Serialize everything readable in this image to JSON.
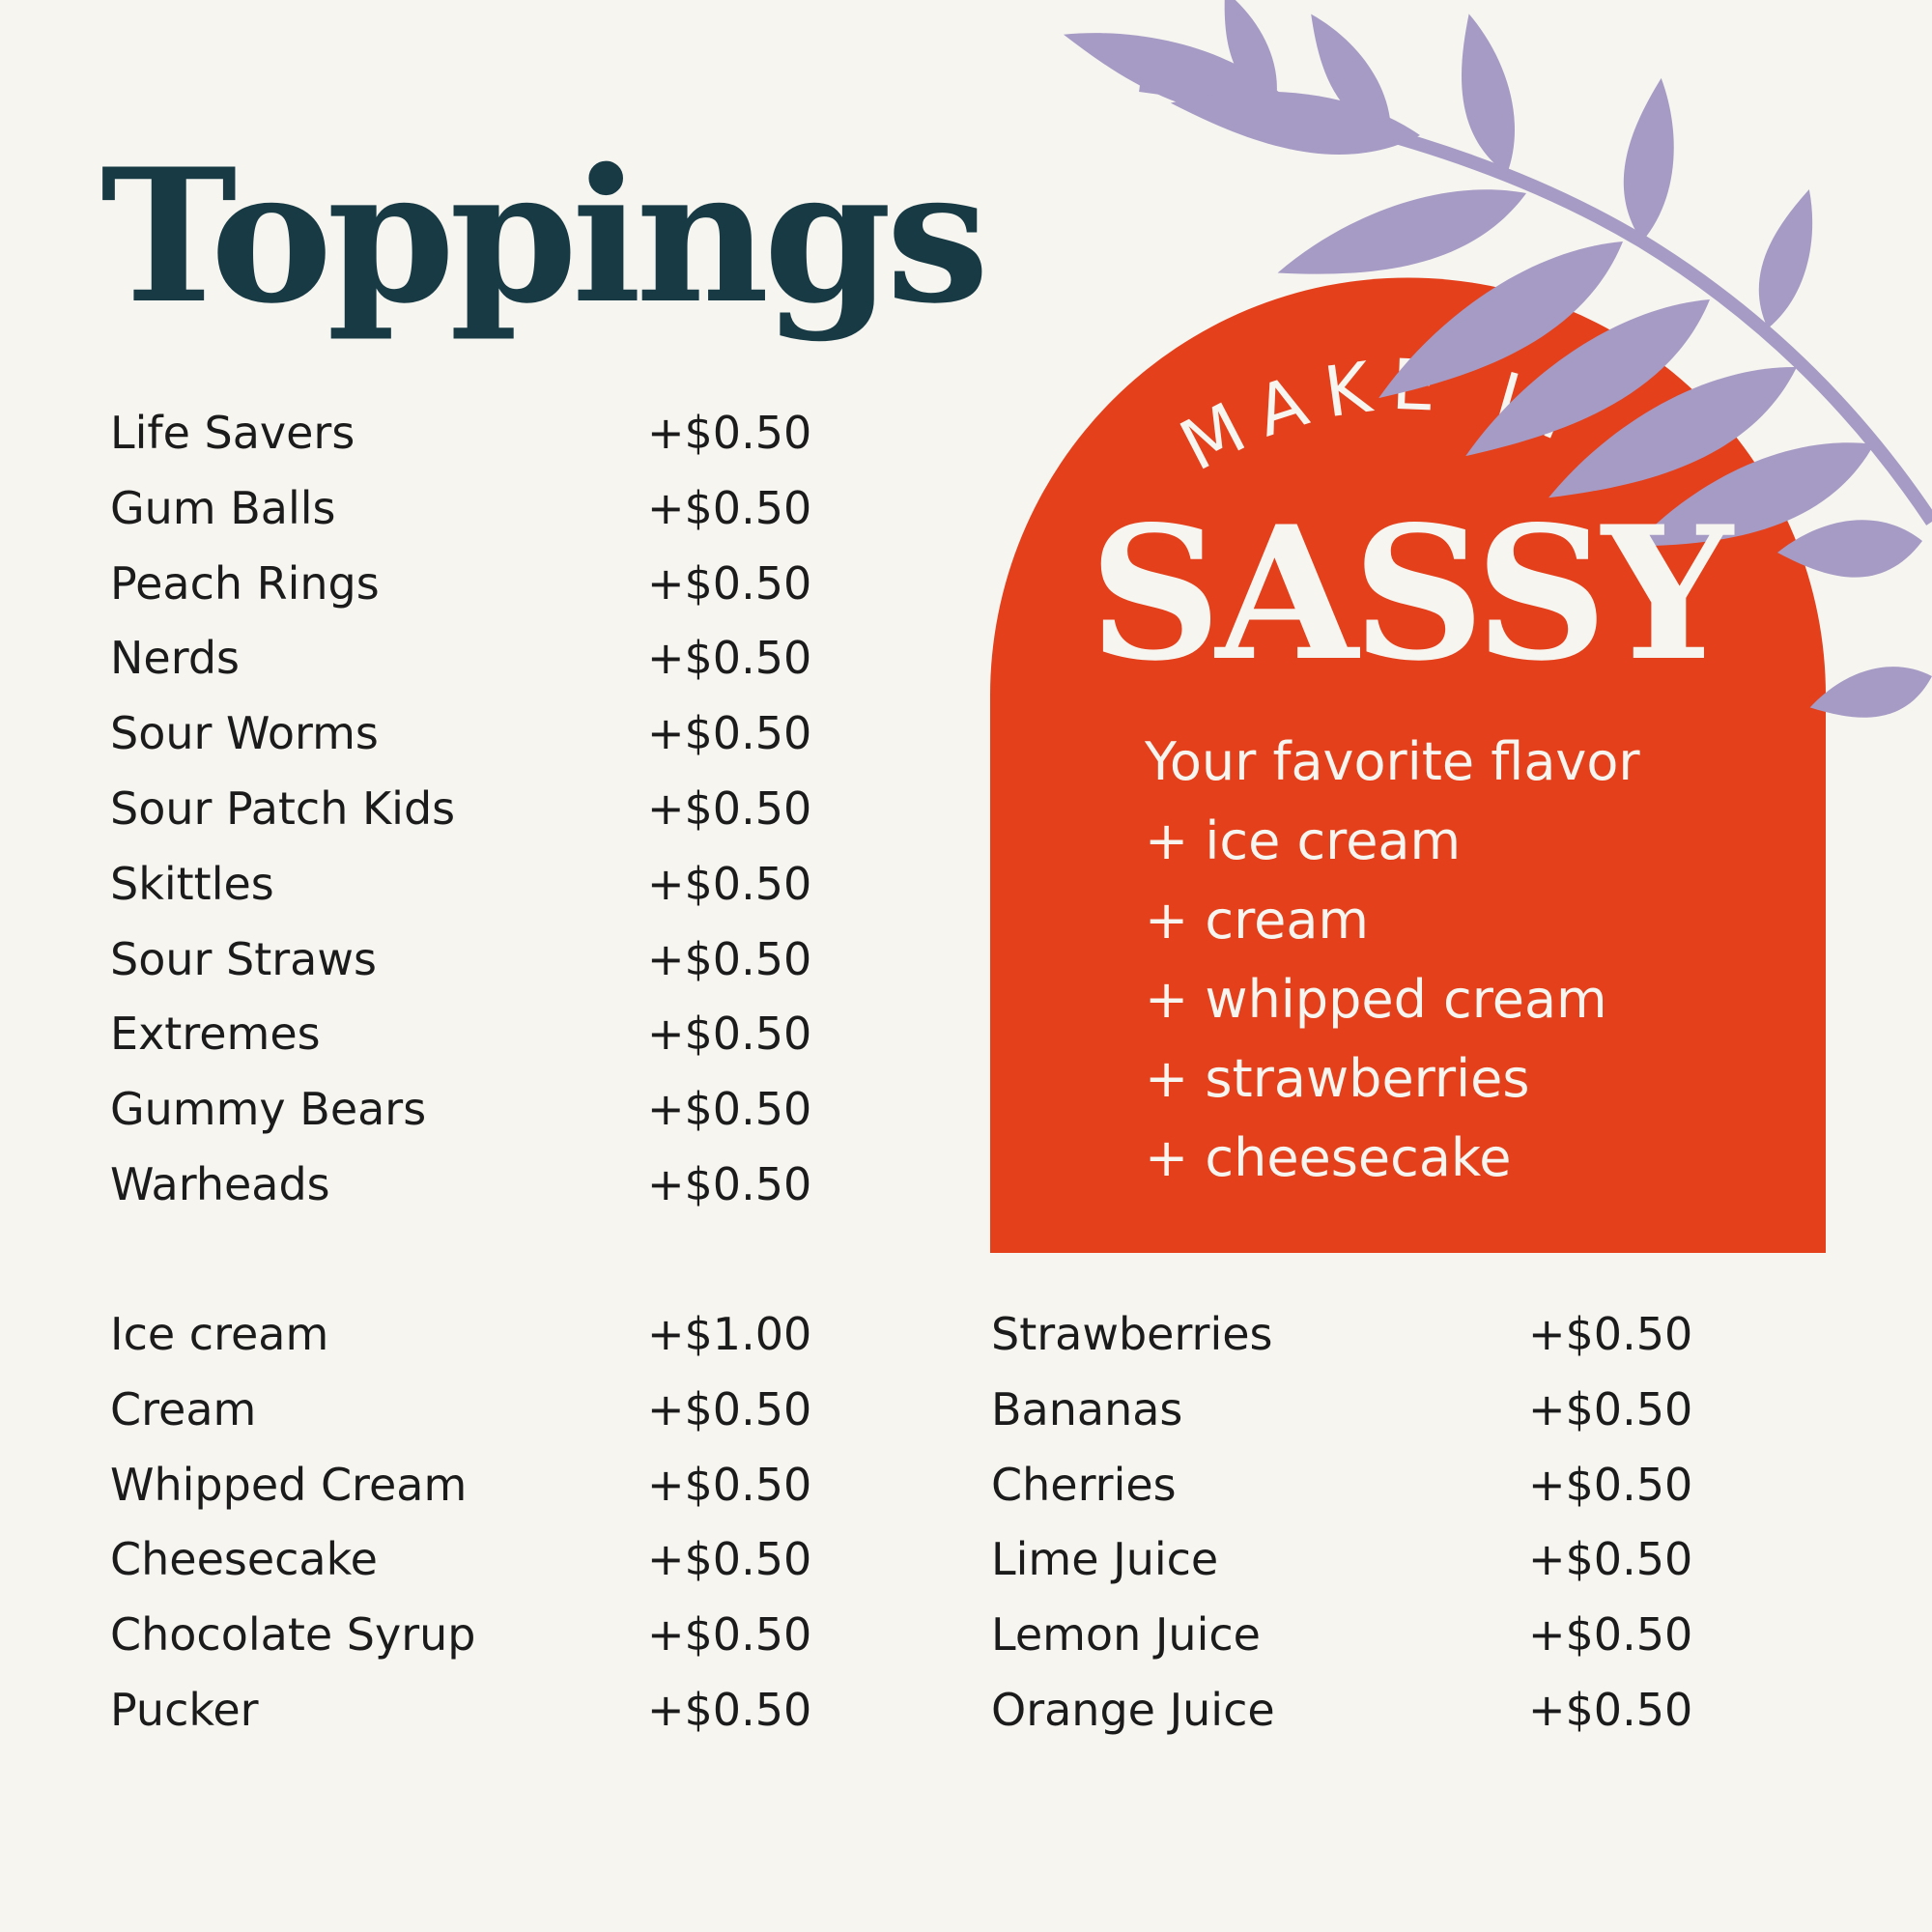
{
  "title": "Toppings",
  "candy_toppings": [
    {
      "name": "Life Savers",
      "price": "+$0.50"
    },
    {
      "name": "Gum Balls",
      "price": "+$0.50"
    },
    {
      "name": "Peach Rings",
      "price": "+$0.50"
    },
    {
      "name": "Nerds",
      "price": "+$0.50"
    },
    {
      "name": "Sour Worms",
      "price": "+$0.50"
    },
    {
      "name": "Sour Patch Kids",
      "price": "+$0.50"
    },
    {
      "name": "Skittles",
      "price": "+$0.50"
    },
    {
      "name": "Sour Straws",
      "price": "+$0.50"
    },
    {
      "name": "Extremes",
      "price": "+$0.50"
    },
    {
      "name": "Gummy Bears",
      "price": "+$0.50"
    },
    {
      "name": "Warheads",
      "price": "+$0.50"
    }
  ],
  "creamy_toppings": [
    {
      "name": "Ice cream",
      "price": "+$1.00"
    },
    {
      "name": "Cream",
      "price": "+$0.50"
    },
    {
      "name": "Whipped Cream",
      "price": "+$0.50"
    },
    {
      "name": "Cheesecake",
      "price": "+$0.50"
    },
    {
      "name": "Chocolate Syrup",
      "price": "+$0.50"
    },
    {
      "name": "Pucker",
      "price": "+$0.50"
    }
  ],
  "fruit_toppings": [
    {
      "name": "Strawberries",
      "price": "+$0.50"
    },
    {
      "name": "Bananas",
      "price": "+$0.50"
    },
    {
      "name": "Cherries",
      "price": "+$0.50"
    },
    {
      "name": "Lime Juice",
      "price": "+$0.50"
    },
    {
      "name": "Lemon Juice",
      "price": "+$0.50"
    },
    {
      "name": "Orange Juice",
      "price": "+$0.50"
    }
  ],
  "promo": {
    "kicker": "MAKE IT",
    "headline": "SASSY",
    "lines": [
      "Your favorite flavor",
      "+ ice cream",
      "+ cream",
      "+ whipped cream",
      "+ strawberries",
      "+ cheesecake"
    ]
  },
  "colors": {
    "background": "#f6f5f0",
    "title": "#183a45",
    "arch": "#e3401b",
    "leaf": "#a69bc4",
    "text": "#1b1b1b"
  },
  "decorations": [
    "arch-shape",
    "leaf-branch-icon"
  ]
}
